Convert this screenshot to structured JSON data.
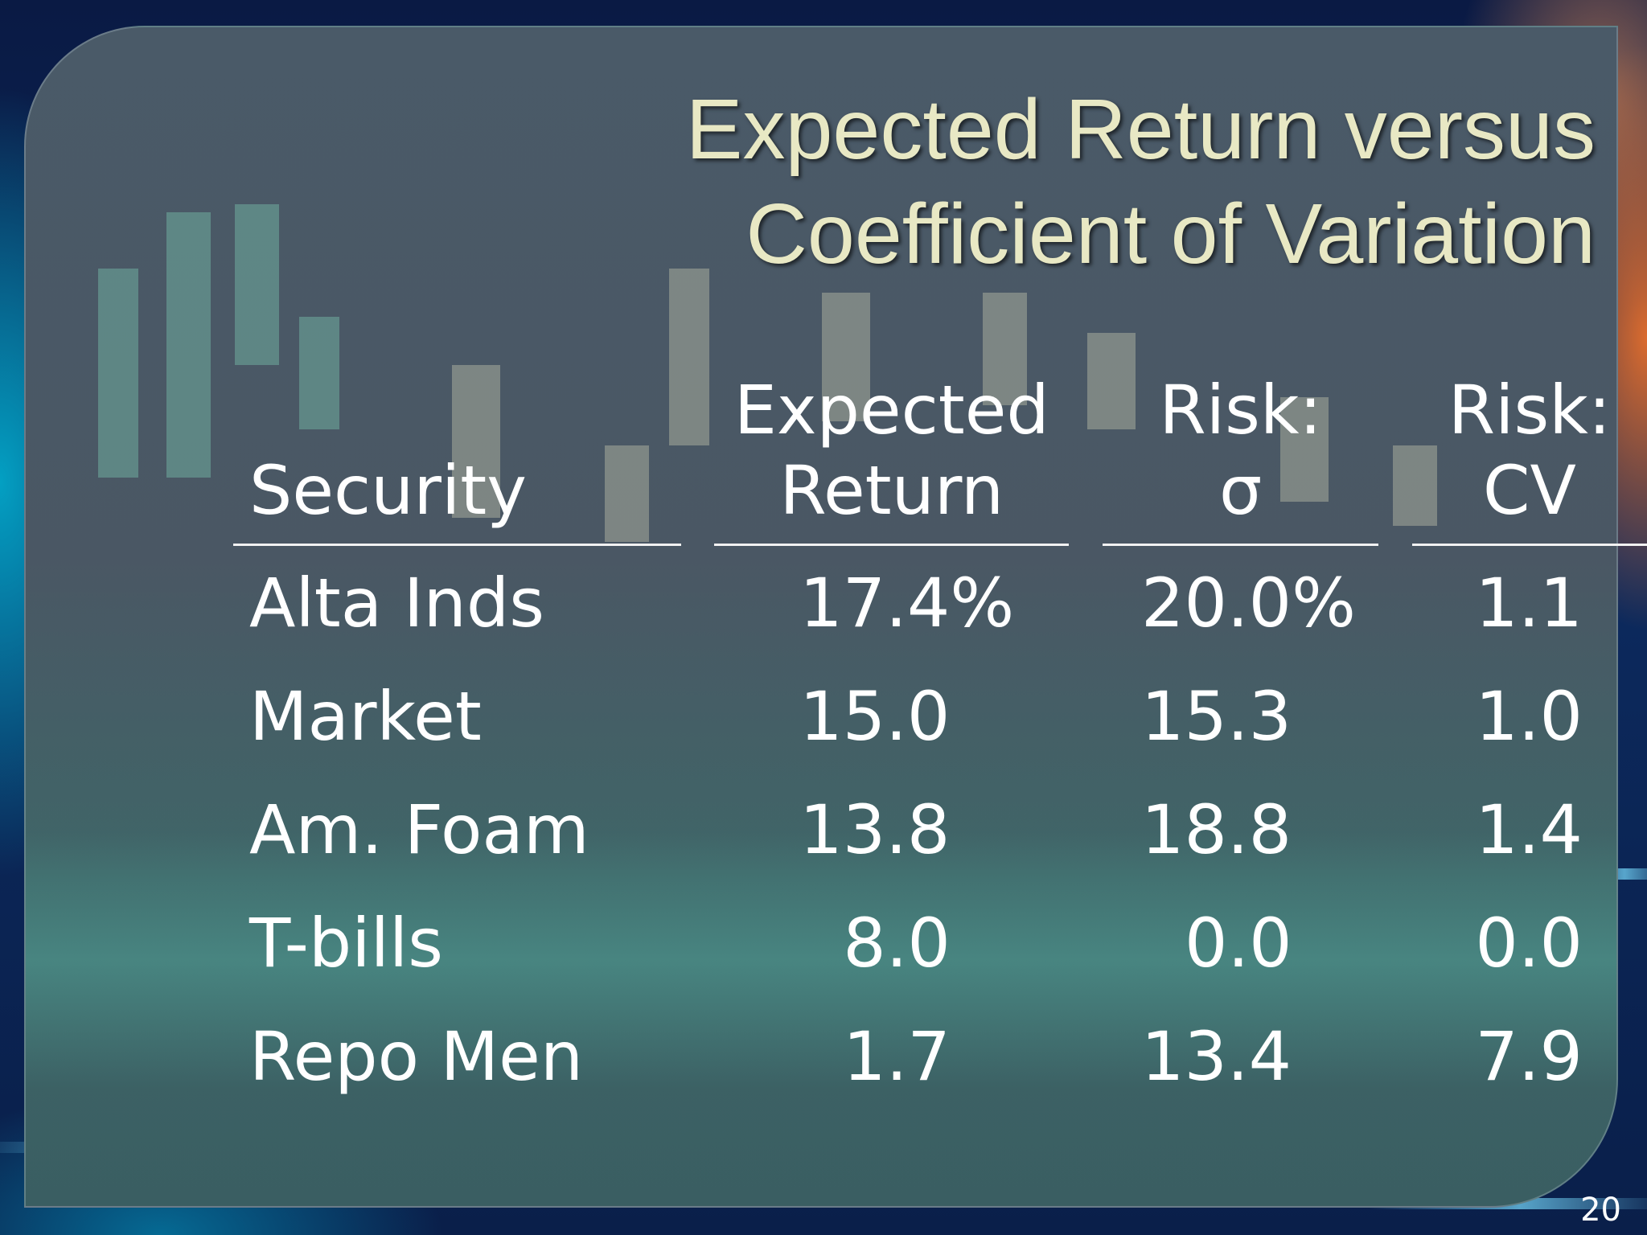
{
  "slide": {
    "title_line1": "Expected Return versus",
    "title_line2": "Coefficient of Variation",
    "page_number": "20"
  },
  "table": {
    "headers": {
      "security": "Security",
      "expected_line1": "Expected",
      "expected_line2": "Return",
      "sigma_line1": "Risk:",
      "sigma_line2": "σ",
      "cv_line1": "Risk:",
      "cv_line2": "CV"
    },
    "rows": [
      {
        "security": "Alta Inds",
        "expected_return": "17.4%",
        "sigma": "20.0%",
        "cv": "1.1"
      },
      {
        "security": "Market",
        "expected_return": "15.0",
        "sigma": "15.3",
        "cv": "1.0"
      },
      {
        "security": "Am. Foam",
        "expected_return": "13.8",
        "sigma": "18.8",
        "cv": "1.4"
      },
      {
        "security": "T-bills",
        "expected_return": "8.0",
        "sigma": "0.0",
        "cv": "0.0"
      },
      {
        "security": "Repo Men",
        "expected_return": "1.7",
        "sigma": "13.4",
        "cv": "7.9"
      }
    ]
  }
}
